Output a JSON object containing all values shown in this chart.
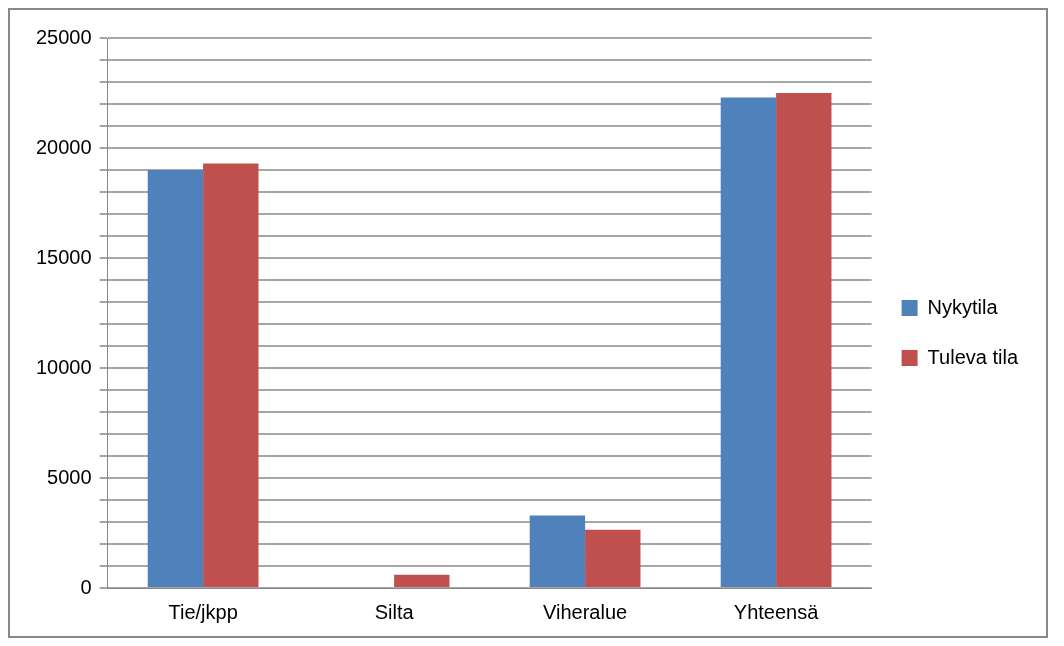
{
  "chart_data": {
    "type": "bar",
    "categories": [
      "Tie/jkpp",
      "Silta",
      "Viheralue",
      "Yhteensä"
    ],
    "series": [
      {
        "name": "Nykytila",
        "color": "#4f81bd",
        "values": [
          19000,
          0,
          3300,
          22300
        ]
      },
      {
        "name": "Tuleva tila",
        "color": "#c0504d",
        "values": [
          19300,
          600,
          2650,
          22500
        ]
      }
    ],
    "ylim": [
      0,
      25000
    ],
    "yticks": [
      0,
      {
        "value": 1000,
        "label": null
      },
      {
        "value": 2000,
        "label": null
      },
      {
        "value": 3000,
        "label": null
      },
      {
        "value": 4000,
        "label": null
      },
      5000,
      {
        "value": 6000,
        "label": null
      },
      {
        "value": 7000,
        "label": null
      },
      {
        "value": 8000,
        "label": null
      },
      {
        "value": 9000,
        "label": null
      },
      10000,
      {
        "value": 11000,
        "label": null
      },
      {
        "value": 12000,
        "label": null
      },
      {
        "value": 13000,
        "label": null
      },
      {
        "value": 14000,
        "label": null
      },
      15000,
      {
        "value": 16000,
        "label": null
      },
      {
        "value": 17000,
        "label": null
      },
      {
        "value": 18000,
        "label": null
      },
      {
        "value": 19000,
        "label": null
      },
      20000,
      {
        "value": 21000,
        "label": null
      },
      {
        "value": 22000,
        "label": null
      },
      {
        "value": 23000,
        "label": null
      },
      {
        "value": 24000,
        "label": null
      },
      25000
    ],
    "grid": "y",
    "legend": "right"
  }
}
